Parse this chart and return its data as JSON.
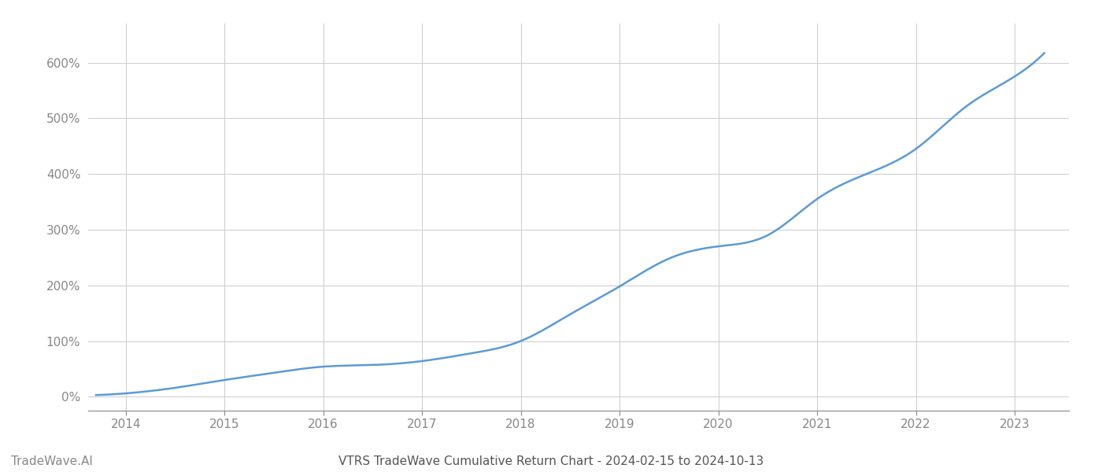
{
  "title": "VTRS TradeWave Cumulative Return Chart - 2024-02-15 to 2024-10-13",
  "watermark": "TradeWave.AI",
  "line_color": "#5b9bd5",
  "line_width": 1.8,
  "background_color": "#ffffff",
  "grid_color": "#d0d0d0",
  "x_years": [
    2014,
    2015,
    2016,
    2017,
    2018,
    2019,
    2020,
    2021,
    2022,
    2023
  ],
  "x_ctrl": [
    2013.7,
    2014.0,
    2014.5,
    2015.0,
    2015.5,
    2016.0,
    2016.5,
    2017.0,
    2017.5,
    2018.0,
    2018.5,
    2019.0,
    2019.5,
    2020.0,
    2020.5,
    2021.0,
    2021.5,
    2022.0,
    2022.5,
    2023.0,
    2023.3
  ],
  "y_ctrl": [
    3,
    6,
    16,
    30,
    43,
    54,
    57,
    64,
    78,
    100,
    148,
    198,
    248,
    270,
    290,
    355,
    400,
    445,
    520,
    575,
    617
  ],
  "ylim": [
    -25,
    670
  ],
  "xlim": [
    2013.62,
    2023.55
  ],
  "yticks": [
    0,
    100,
    200,
    300,
    400,
    500,
    600
  ],
  "title_fontsize": 11,
  "tick_fontsize": 11,
  "watermark_fontsize": 11,
  "axis_color": "#999999",
  "tick_color": "#888888",
  "title_color": "#555555",
  "watermark_color": "#888888"
}
